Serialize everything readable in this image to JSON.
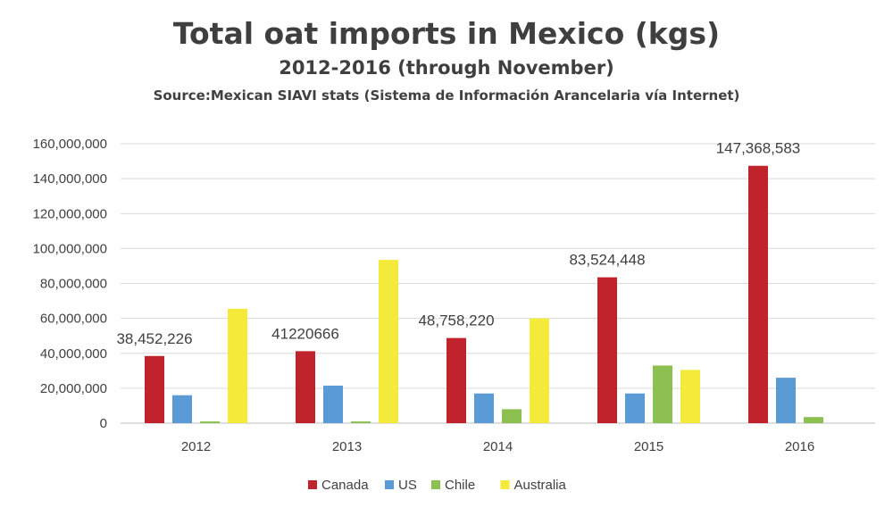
{
  "chart_data": {
    "type": "bar",
    "title": "Total oat imports in Mexico (kgs)",
    "subtitle": "2012-2016 (through November)",
    "source": "Source:Mexican SIAVI stats  (Sistema de Información Arancelaria vía Internet)",
    "categories": [
      "2012",
      "2013",
      "2014",
      "2015",
      "2016"
    ],
    "series": [
      {
        "name": "Canada",
        "color": "#c0232c",
        "values": [
          38452226,
          41220666,
          48758220,
          83524448,
          147368583
        ]
      },
      {
        "name": "US",
        "color": "#5b9bd5",
        "values": [
          16000000,
          21500000,
          17000000,
          17000000,
          26000000
        ]
      },
      {
        "name": "Chile",
        "color": "#8cc152",
        "values": [
          1000000,
          1000000,
          8000000,
          33000000,
          3500000
        ]
      },
      {
        "name": "Australia",
        "color": "#f4ea3a",
        "values": [
          65500000,
          93500000,
          60000000,
          30500000,
          0
        ]
      }
    ],
    "data_labels": [
      "38,452,226",
      "41220666",
      "48,758,220",
      "83,524,448",
      "147,368,583"
    ],
    "ylim": [
      0,
      160000000
    ],
    "yticks": [
      "0",
      "20,000,000",
      "40,000,000",
      "60,000,000",
      "80,000,000",
      "100,000,000",
      "120,000,000",
      "140,000,000",
      "160,000,000"
    ],
    "xlabel": "",
    "ylabel": "",
    "grid": true,
    "legend_position": "bottom"
  }
}
